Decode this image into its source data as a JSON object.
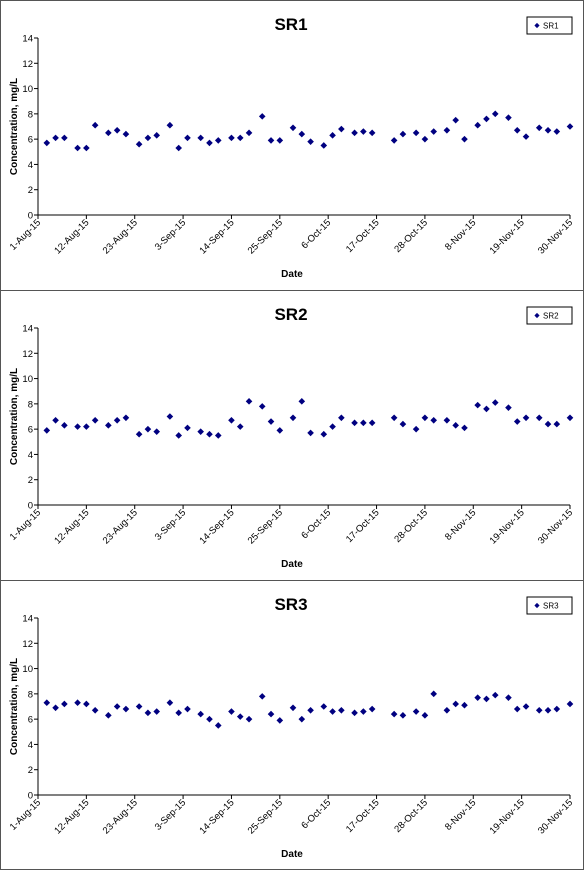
{
  "chart_data": [
    {
      "type": "scatter",
      "title": "SR1",
      "xlabel": "Date",
      "ylabel": "Concentration, mg/L",
      "ylim": [
        0,
        14
      ],
      "yticks": [
        0,
        2,
        4,
        6,
        8,
        10,
        12,
        14
      ],
      "xlim": [
        "2015-08-01",
        "2015-11-30"
      ],
      "xtick_labels": [
        "1-Aug-15",
        "12-Aug-15",
        "23-Aug-15",
        "3-Sep-15",
        "14-Sep-15",
        "25-Sep-15",
        "6-Oct-15",
        "17-Oct-15",
        "28-Oct-15",
        "8-Nov-15",
        "19-Nov-15",
        "30-Nov-15"
      ],
      "grid": false,
      "legend_position": "top-right",
      "marker_color": "#000080",
      "series": [
        {
          "name": "SR1",
          "x": [
            "2015-08-03",
            "2015-08-05",
            "2015-08-07",
            "2015-08-10",
            "2015-08-12",
            "2015-08-14",
            "2015-08-17",
            "2015-08-19",
            "2015-08-21",
            "2015-08-24",
            "2015-08-26",
            "2015-08-28",
            "2015-08-31",
            "2015-09-02",
            "2015-09-04",
            "2015-09-07",
            "2015-09-09",
            "2015-09-11",
            "2015-09-14",
            "2015-09-16",
            "2015-09-18",
            "2015-09-21",
            "2015-09-23",
            "2015-09-25",
            "2015-09-28",
            "2015-09-30",
            "2015-10-02",
            "2015-10-05",
            "2015-10-07",
            "2015-10-09",
            "2015-10-12",
            "2015-10-14",
            "2015-10-16",
            "2015-10-21",
            "2015-10-23",
            "2015-10-26",
            "2015-10-28",
            "2015-10-30",
            "2015-11-02",
            "2015-11-04",
            "2015-11-06",
            "2015-11-09",
            "2015-11-11",
            "2015-11-13",
            "2015-11-16",
            "2015-11-18",
            "2015-11-20",
            "2015-11-23",
            "2015-11-25",
            "2015-11-27",
            "2015-11-30"
          ],
          "y": [
            5.7,
            6.1,
            6.1,
            5.3,
            5.3,
            7.1,
            6.5,
            6.7,
            6.4,
            5.6,
            6.1,
            6.3,
            7.1,
            5.3,
            6.1,
            6.1,
            5.7,
            5.9,
            6.1,
            6.1,
            6.5,
            7.8,
            5.9,
            5.9,
            6.9,
            6.4,
            5.8,
            5.5,
            6.3,
            6.8,
            6.5,
            6.6,
            6.5,
            5.9,
            6.4,
            6.5,
            6.0,
            6.6,
            6.7,
            7.5,
            6.0,
            7.1,
            7.6,
            8.0,
            7.7,
            6.7,
            6.2,
            6.9,
            6.7,
            6.6,
            7.0
          ]
        }
      ]
    },
    {
      "type": "scatter",
      "title": "SR2",
      "xlabel": "Date",
      "ylabel": "Concentration, mg/L",
      "ylim": [
        0,
        14
      ],
      "yticks": [
        0,
        2,
        4,
        6,
        8,
        10,
        12,
        14
      ],
      "xlim": [
        "2015-08-01",
        "2015-11-30"
      ],
      "xtick_labels": [
        "1-Aug-15",
        "12-Aug-15",
        "23-Aug-15",
        "3-Sep-15",
        "14-Sep-15",
        "25-Sep-15",
        "6-Oct-15",
        "17-Oct-15",
        "28-Oct-15",
        "8-Nov-15",
        "19-Nov-15",
        "30-Nov-15"
      ],
      "grid": false,
      "legend_position": "top-right",
      "marker_color": "#000080",
      "series": [
        {
          "name": "SR2",
          "x": [
            "2015-08-03",
            "2015-08-05",
            "2015-08-07",
            "2015-08-10",
            "2015-08-12",
            "2015-08-14",
            "2015-08-17",
            "2015-08-19",
            "2015-08-21",
            "2015-08-24",
            "2015-08-26",
            "2015-08-28",
            "2015-08-31",
            "2015-09-02",
            "2015-09-04",
            "2015-09-07",
            "2015-09-09",
            "2015-09-11",
            "2015-09-14",
            "2015-09-16",
            "2015-09-18",
            "2015-09-21",
            "2015-09-23",
            "2015-09-25",
            "2015-09-28",
            "2015-09-30",
            "2015-10-02",
            "2015-10-05",
            "2015-10-07",
            "2015-10-09",
            "2015-10-12",
            "2015-10-14",
            "2015-10-16",
            "2015-10-21",
            "2015-10-23",
            "2015-10-26",
            "2015-10-28",
            "2015-10-30",
            "2015-11-02",
            "2015-11-04",
            "2015-11-06",
            "2015-11-09",
            "2015-11-11",
            "2015-11-13",
            "2015-11-16",
            "2015-11-18",
            "2015-11-20",
            "2015-11-23",
            "2015-11-25",
            "2015-11-27",
            "2015-11-30"
          ],
          "y": [
            5.9,
            6.7,
            6.3,
            6.2,
            6.2,
            6.7,
            6.3,
            6.7,
            6.9,
            5.6,
            6.0,
            5.8,
            7.0,
            5.5,
            6.1,
            5.8,
            5.6,
            5.5,
            6.7,
            6.2,
            8.2,
            7.8,
            6.6,
            5.9,
            6.9,
            8.2,
            5.7,
            5.6,
            6.2,
            6.9,
            6.5,
            6.5,
            6.5,
            6.9,
            6.4,
            6.0,
            6.9,
            6.7,
            6.7,
            6.3,
            6.1,
            7.9,
            7.6,
            8.1,
            7.7,
            6.6,
            6.9,
            6.9,
            6.4,
            6.4,
            6.9
          ]
        }
      ]
    },
    {
      "type": "scatter",
      "title": "SR3",
      "xlabel": "Date",
      "ylabel": "Concentration, mg/L",
      "ylim": [
        0,
        14
      ],
      "yticks": [
        0,
        2,
        4,
        6,
        8,
        10,
        12,
        14
      ],
      "xlim": [
        "2015-08-01",
        "2015-11-30"
      ],
      "xtick_labels": [
        "1-Aug-15",
        "12-Aug-15",
        "23-Aug-15",
        "3-Sep-15",
        "14-Sep-15",
        "25-Sep-15",
        "6-Oct-15",
        "17-Oct-15",
        "28-Oct-15",
        "8-Nov-15",
        "19-Nov-15",
        "30-Nov-15"
      ],
      "grid": false,
      "legend_position": "top-right",
      "marker_color": "#000080",
      "series": [
        {
          "name": "SR3",
          "x": [
            "2015-08-03",
            "2015-08-05",
            "2015-08-07",
            "2015-08-10",
            "2015-08-12",
            "2015-08-14",
            "2015-08-17",
            "2015-08-19",
            "2015-08-21",
            "2015-08-24",
            "2015-08-26",
            "2015-08-28",
            "2015-08-31",
            "2015-09-02",
            "2015-09-04",
            "2015-09-07",
            "2015-09-09",
            "2015-09-11",
            "2015-09-14",
            "2015-09-16",
            "2015-09-18",
            "2015-09-21",
            "2015-09-23",
            "2015-09-25",
            "2015-09-28",
            "2015-09-30",
            "2015-10-02",
            "2015-10-05",
            "2015-10-07",
            "2015-10-09",
            "2015-10-12",
            "2015-10-14",
            "2015-10-16",
            "2015-10-21",
            "2015-10-23",
            "2015-10-26",
            "2015-10-28",
            "2015-10-30",
            "2015-11-02",
            "2015-11-04",
            "2015-11-06",
            "2015-11-09",
            "2015-11-11",
            "2015-11-13",
            "2015-11-16",
            "2015-11-18",
            "2015-11-20",
            "2015-11-23",
            "2015-11-25",
            "2015-11-27",
            "2015-11-30"
          ],
          "y": [
            7.3,
            6.9,
            7.2,
            7.3,
            7.2,
            6.7,
            6.3,
            7.0,
            6.8,
            7.0,
            6.5,
            6.6,
            7.3,
            6.5,
            6.8,
            6.4,
            6.0,
            5.5,
            6.6,
            6.2,
            6.0,
            7.8,
            6.4,
            5.9,
            6.9,
            6.0,
            6.7,
            7.0,
            6.6,
            6.7,
            6.5,
            6.6,
            6.8,
            6.4,
            6.3,
            6.6,
            6.3,
            8.0,
            6.7,
            7.2,
            7.1,
            7.7,
            7.6,
            7.9,
            7.7,
            6.8,
            7.0,
            6.7,
            6.7,
            6.8,
            7.2
          ]
        }
      ]
    }
  ]
}
